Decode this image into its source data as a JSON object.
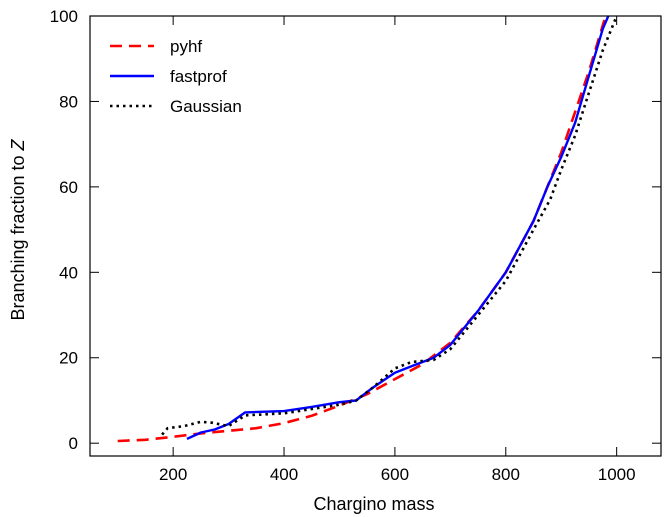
{
  "chart_data": {
    "type": "line",
    "title": "",
    "xlabel": "Chargino mass",
    "ylabel_prefix": "Branching fraction to ",
    "ylabel_symbol": "Z",
    "xlim": [
      50,
      1080
    ],
    "ylim": [
      -3,
      100
    ],
    "xticks": [
      200,
      400,
      600,
      800,
      1000
    ],
    "yticks": [
      0,
      20,
      40,
      60,
      80,
      100
    ],
    "xtick_labels": [
      "200",
      "400",
      "600",
      "800",
      "1000"
    ],
    "ytick_labels": [
      "0",
      "20",
      "40",
      "60",
      "80",
      "100"
    ],
    "grid": false,
    "legend_position": "top-left",
    "series": [
      {
        "name": "pyhf",
        "color": "#ff0000",
        "style": "dashed",
        "x": [
          100,
          150,
          200,
          250,
          300,
          350,
          400,
          450,
          500,
          550,
          600,
          650,
          700,
          750,
          800,
          850,
          900,
          950,
          980
        ],
        "y": [
          0.5,
          0.8,
          1.5,
          2.3,
          2.9,
          3.5,
          4.7,
          6.4,
          8.8,
          11.5,
          15.0,
          18.5,
          23.5,
          31.0,
          40.0,
          52.0,
          68.0,
          87.0,
          100.0
        ]
      },
      {
        "name": "fastprof",
        "color": "#0000ff",
        "style": "solid",
        "x": [
          225,
          250,
          275,
          300,
          330,
          400,
          450,
          500,
          530,
          560,
          600,
          630,
          670,
          700,
          750,
          800,
          850,
          875,
          900,
          925,
          950,
          975,
          985
        ],
        "y": [
          1.0,
          2.5,
          3.2,
          4.5,
          7.2,
          7.5,
          8.5,
          9.6,
          10.0,
          13.0,
          16.5,
          18.0,
          20.0,
          23.0,
          31.0,
          40.0,
          52.0,
          60.0,
          67.0,
          75.0,
          86.0,
          97.0,
          100.0
        ]
      },
      {
        "name": "Gaussian",
        "color": "#000000",
        "style": "dotted",
        "x": [
          180,
          190,
          220,
          250,
          270,
          300,
          330,
          400,
          450,
          500,
          530,
          560,
          600,
          630,
          670,
          700,
          750,
          800,
          850,
          880,
          900,
          925,
          950,
          975,
          1000
        ],
        "y": [
          2.0,
          3.5,
          4.0,
          5.0,
          4.8,
          4.0,
          6.5,
          7.0,
          8.0,
          9.0,
          10.0,
          13.0,
          17.5,
          19.0,
          19.5,
          22.0,
          30.0,
          38.0,
          50.0,
          57.0,
          64.0,
          72.0,
          82.0,
          92.0,
          100.0
        ]
      }
    ]
  }
}
